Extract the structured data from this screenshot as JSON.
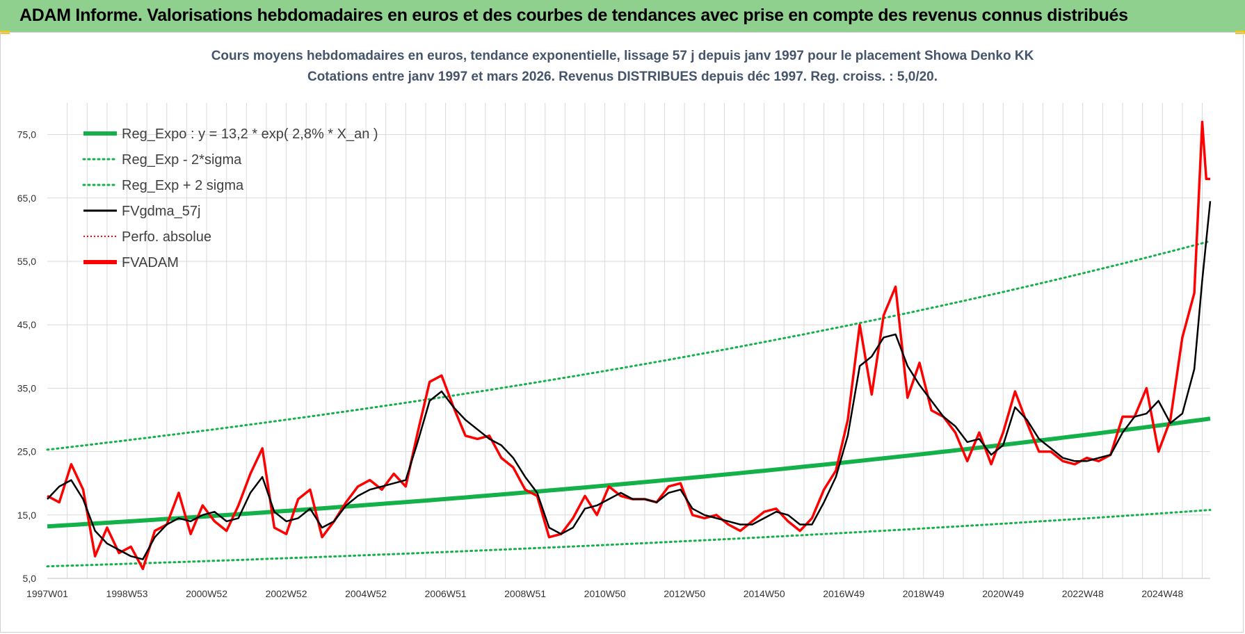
{
  "banner": {
    "title": "ADAM Informe. Valorisations hebdomadaires en euros et des courbes de tendances avec prise en compte des revenus connus distribués"
  },
  "colors": {
    "banner_bg": "#8fd08f",
    "reg_expo": "#14b04a",
    "reg_band": "#14b04a",
    "fvgdma": "#000000",
    "perfo": "#ff0000",
    "fvadam": "#ff0000",
    "grid": "#d9d9d9"
  },
  "chart_data": {
    "type": "line",
    "title": "Cours moyens hebdomadaires en euros, tendance exponentielle, lissage 57 j depuis janv 1997  pour le placement Showa Denko KK",
    "subtitle": "Cotations entre janv 1997 et mars 2026. Revenus DISTRIBUES depuis déc 1997. Reg. croiss. : 5,0/20.",
    "x_range": [
      1997.0,
      2026.2
    ],
    "x_ticks": [
      {
        "label": "1997W01",
        "x": 1997.0
      },
      {
        "label": "1998W53",
        "x": 1999.0
      },
      {
        "label": "2000W52",
        "x": 2001.0
      },
      {
        "label": "2002W52",
        "x": 2003.0
      },
      {
        "label": "2004W52",
        "x": 2005.0
      },
      {
        "label": "2006W51",
        "x": 2007.0
      },
      {
        "label": "2008W51",
        "x": 2009.0
      },
      {
        "label": "2010W50",
        "x": 2011.0
      },
      {
        "label": "2012W50",
        "x": 2013.0
      },
      {
        "label": "2014W50",
        "x": 2015.0
      },
      {
        "label": "2016W49",
        "x": 2017.0
      },
      {
        "label": "2018W49",
        "x": 2019.0
      },
      {
        "label": "2020W49",
        "x": 2021.0
      },
      {
        "label": "2022W48",
        "x": 2023.0
      },
      {
        "label": "2024W48",
        "x": 2025.0
      }
    ],
    "y_range": [
      5,
      80
    ],
    "y_ticks": [
      5,
      15,
      25,
      35,
      45,
      55,
      65,
      75
    ],
    "y_tick_labels": [
      "5,0",
      "15,0",
      "25,0",
      "35,0",
      "45,0",
      "55,0",
      "65,0",
      "75,0"
    ],
    "grid": true,
    "legend_placement": "top-left",
    "legend": [
      {
        "label": "Reg_Expo : y = 13,2 * exp( 2,8% *  X_an )",
        "style": "solid-thick",
        "color": "#14b04a"
      },
      {
        "label": "Reg_Exp - 2*sigma",
        "style": "dotted",
        "color": "#14b04a"
      },
      {
        "label": "Reg_Exp + 2 sigma",
        "style": "dotted",
        "color": "#14b04a"
      },
      {
        "label": "FVgdma_57j",
        "style": "solid",
        "color": "#000000"
      },
      {
        "label": "Perfo. absolue",
        "style": "dotted-thin",
        "color": "#ff0000"
      },
      {
        "label": "FVADAM",
        "style": "solid-thick",
        "color": "#ff0000"
      }
    ],
    "series": [
      {
        "name": "Reg_Expo : y = 13,2 * exp( 2,8% *  X_an )",
        "x": [
          1997.0,
          2026.2
        ],
        "y": [
          13.2,
          30.2
        ],
        "curve": "exponential"
      },
      {
        "name": "Reg_Exp - 2*sigma",
        "x": [
          1997.0,
          2026.2
        ],
        "y": [
          6.9,
          15.8
        ],
        "curve": "exponential"
      },
      {
        "name": "Reg_Exp + 2 sigma",
        "x": [
          1997.0,
          2026.2
        ],
        "y": [
          25.3,
          58.2
        ],
        "curve": "exponential"
      },
      {
        "name": "FVgdma_57j",
        "x": [
          1997.0,
          1997.3,
          1997.6,
          1997.9,
          1998.2,
          1998.5,
          1998.8,
          1999.1,
          1999.4,
          1999.7,
          2000.0,
          2000.3,
          2000.6,
          2000.9,
          2001.2,
          2001.5,
          2001.8,
          2002.1,
          2002.4,
          2002.7,
          2003.0,
          2003.3,
          2003.6,
          2003.9,
          2004.2,
          2004.5,
          2004.8,
          2005.1,
          2005.4,
          2005.7,
          2006.0,
          2006.3,
          2006.6,
          2006.9,
          2007.2,
          2007.5,
          2007.8,
          2008.1,
          2008.4,
          2008.7,
          2009.0,
          2009.3,
          2009.6,
          2009.9,
          2010.2,
          2010.5,
          2010.8,
          2011.1,
          2011.4,
          2011.7,
          2012.0,
          2012.3,
          2012.6,
          2012.9,
          2013.2,
          2013.5,
          2013.8,
          2014.1,
          2014.4,
          2014.7,
          2015.0,
          2015.3,
          2015.6,
          2015.9,
          2016.2,
          2016.5,
          2016.8,
          2017.1,
          2017.4,
          2017.7,
          2018.0,
          2018.3,
          2018.6,
          2018.9,
          2019.2,
          2019.5,
          2019.8,
          2020.1,
          2020.4,
          2020.7,
          2021.0,
          2021.3,
          2021.6,
          2021.9,
          2022.2,
          2022.5,
          2022.8,
          2023.1,
          2023.4,
          2023.7,
          2024.0,
          2024.3,
          2024.6,
          2024.9,
          2025.2,
          2025.5,
          2025.8,
          2026.0,
          2026.2
        ],
        "y": [
          17.5,
          19.5,
          20.5,
          17.5,
          12.5,
          10.5,
          9.5,
          8.5,
          8.0,
          11.5,
          13.5,
          14.5,
          14.0,
          15.0,
          15.5,
          14.0,
          14.5,
          18.5,
          21.0,
          15.5,
          14.0,
          14.5,
          16.0,
          13.0,
          14.0,
          16.5,
          18.0,
          19.0,
          19.5,
          20.0,
          20.5,
          26.5,
          33.0,
          34.5,
          32.0,
          30.0,
          28.5,
          27.0,
          26.0,
          24.0,
          21.0,
          18.5,
          13.0,
          12.0,
          13.0,
          16.0,
          16.5,
          17.5,
          18.5,
          17.5,
          17.5,
          17.0,
          18.5,
          19.0,
          16.0,
          15.0,
          14.5,
          14.0,
          13.5,
          13.5,
          14.5,
          15.5,
          15.0,
          13.5,
          13.5,
          17.0,
          21.0,
          27.5,
          38.5,
          40.0,
          43.0,
          43.5,
          38.5,
          35.5,
          33.0,
          30.5,
          29.0,
          26.5,
          27.0,
          24.5,
          26.0,
          32.0,
          30.0,
          27.0,
          25.5,
          24.0,
          23.5,
          23.5,
          24.0,
          24.5,
          28.0,
          30.5,
          31.0,
          33.0,
          29.5,
          31.0,
          38.0,
          52.0,
          64.5
        ]
      },
      {
        "name": "FVADAM",
        "x": [
          1997.0,
          1997.3,
          1997.6,
          1997.9,
          1998.2,
          1998.5,
          1998.8,
          1999.1,
          1999.4,
          1999.7,
          2000.0,
          2000.3,
          2000.6,
          2000.9,
          2001.2,
          2001.5,
          2001.8,
          2002.1,
          2002.4,
          2002.7,
          2003.0,
          2003.3,
          2003.6,
          2003.9,
          2004.2,
          2004.5,
          2004.8,
          2005.1,
          2005.4,
          2005.7,
          2006.0,
          2006.3,
          2006.6,
          2006.9,
          2007.2,
          2007.5,
          2007.8,
          2008.1,
          2008.4,
          2008.7,
          2009.0,
          2009.3,
          2009.6,
          2009.9,
          2010.2,
          2010.5,
          2010.8,
          2011.1,
          2011.4,
          2011.7,
          2012.0,
          2012.3,
          2012.6,
          2012.9,
          2013.2,
          2013.5,
          2013.8,
          2014.1,
          2014.4,
          2014.7,
          2015.0,
          2015.3,
          2015.6,
          2015.9,
          2016.2,
          2016.5,
          2016.8,
          2017.1,
          2017.4,
          2017.7,
          2018.0,
          2018.3,
          2018.6,
          2018.9,
          2019.2,
          2019.5,
          2019.8,
          2020.1,
          2020.4,
          2020.7,
          2021.0,
          2021.3,
          2021.6,
          2021.9,
          2022.2,
          2022.5,
          2022.8,
          2023.1,
          2023.4,
          2023.7,
          2024.0,
          2024.3,
          2024.6,
          2024.9,
          2025.2,
          2025.5,
          2025.8,
          2026.0,
          2026.1,
          2026.2
        ],
        "y": [
          18.0,
          17.0,
          23.0,
          19.0,
          8.5,
          13.0,
          9.0,
          10.0,
          6.5,
          12.5,
          13.5,
          18.5,
          12.0,
          16.5,
          14.0,
          12.5,
          16.5,
          21.5,
          25.5,
          13.0,
          12.0,
          17.5,
          19.0,
          11.5,
          14.0,
          17.0,
          19.5,
          20.5,
          19.0,
          21.5,
          19.5,
          28.0,
          36.0,
          37.0,
          32.0,
          27.5,
          27.0,
          27.5,
          24.0,
          22.5,
          19.0,
          18.0,
          11.5,
          12.0,
          14.5,
          18.0,
          15.0,
          19.5,
          18.0,
          17.5,
          17.5,
          17.0,
          19.5,
          20.0,
          15.0,
          14.5,
          15.0,
          13.5,
          12.5,
          14.0,
          15.5,
          16.0,
          14.0,
          12.5,
          14.5,
          19.0,
          22.0,
          30.0,
          45.0,
          34.0,
          46.5,
          51.0,
          33.5,
          39.0,
          31.5,
          30.5,
          28.0,
          23.5,
          28.0,
          23.0,
          28.0,
          34.5,
          29.5,
          25.0,
          25.0,
          23.5,
          23.0,
          24.0,
          23.5,
          24.5,
          30.5,
          30.5,
          35.0,
          25.0,
          30.0,
          43.0,
          50.0,
          77.0,
          68.0,
          68.0
        ]
      }
    ]
  }
}
